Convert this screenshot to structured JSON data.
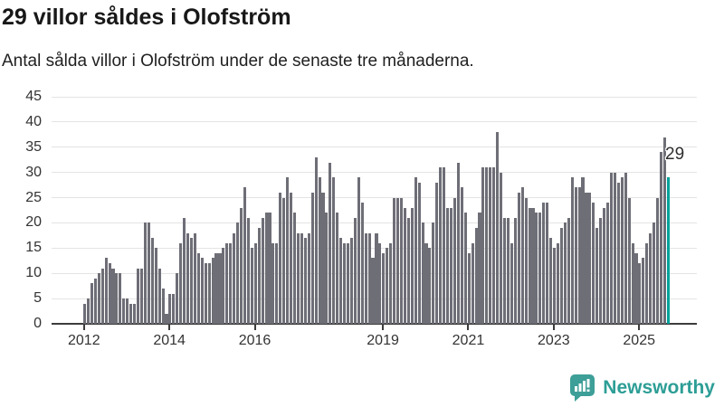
{
  "header": {
    "title": "29 villor såldes i Olofström",
    "subtitle": "Antal sålda villor i Olofström under de senaste tre månaderna."
  },
  "chart_data": {
    "type": "bar",
    "title": "29 villor såldes i Olofström",
    "subtitle": "Antal sålda villor i Olofström under de senaste tre månaderna.",
    "frequency": "monthly",
    "start": "2012-01",
    "end": "2025-09",
    "ylim": [
      0,
      45
    ],
    "yticks": [
      0,
      5,
      10,
      15,
      20,
      25,
      30,
      35,
      40,
      45
    ],
    "grid": true,
    "xtick_labels": [
      "2012",
      "2014",
      "2016",
      "2019",
      "2021",
      "2023",
      "2025"
    ],
    "xtick_month_indices": [
      0,
      24,
      48,
      84,
      108,
      132,
      156
    ],
    "values": [
      4,
      5,
      8,
      9,
      10,
      11,
      13,
      12,
      11,
      10,
      10,
      5,
      5,
      4,
      4,
      11,
      11,
      20,
      20,
      17,
      15,
      11,
      7,
      2,
      6,
      6,
      10,
      16,
      21,
      18,
      17,
      18,
      14,
      13,
      12,
      12,
      13,
      14,
      14,
      15,
      16,
      16,
      18,
      20,
      23,
      27,
      21,
      15,
      16,
      19,
      21,
      22,
      22,
      16,
      16,
      26,
      25,
      29,
      26,
      22,
      18,
      18,
      17,
      18,
      26,
      33,
      29,
      26,
      22,
      32,
      29,
      22,
      17,
      16,
      16,
      17,
      21,
      29,
      24,
      18,
      18,
      13,
      18,
      16,
      14,
      15,
      16,
      25,
      25,
      25,
      23,
      21,
      23,
      29,
      28,
      20,
      16,
      15,
      20,
      28,
      31,
      31,
      23,
      23,
      25,
      32,
      27,
      22,
      14,
      16,
      19,
      22,
      31,
      31,
      31,
      31,
      38,
      30,
      21,
      21,
      16,
      21,
      26,
      27,
      25,
      23,
      23,
      22,
      22,
      24,
      24,
      17,
      15,
      16,
      19,
      20,
      21,
      29,
      27,
      27,
      29,
      26,
      26,
      24,
      19,
      21,
      23,
      24,
      30,
      30,
      28,
      29,
      30,
      25,
      16,
      14,
      12,
      13,
      16,
      18,
      20,
      25,
      34,
      37,
      29
    ],
    "bar_color": "#6e6e77",
    "highlight": {
      "index": 164,
      "value": 29,
      "label": "29",
      "color": "#00a29b"
    },
    "legend": null
  },
  "footer": {
    "brand": "Newsworthy",
    "brand_color": "#2d9e96",
    "logo_icon": "bar-chart-speech-bubble-icon"
  }
}
